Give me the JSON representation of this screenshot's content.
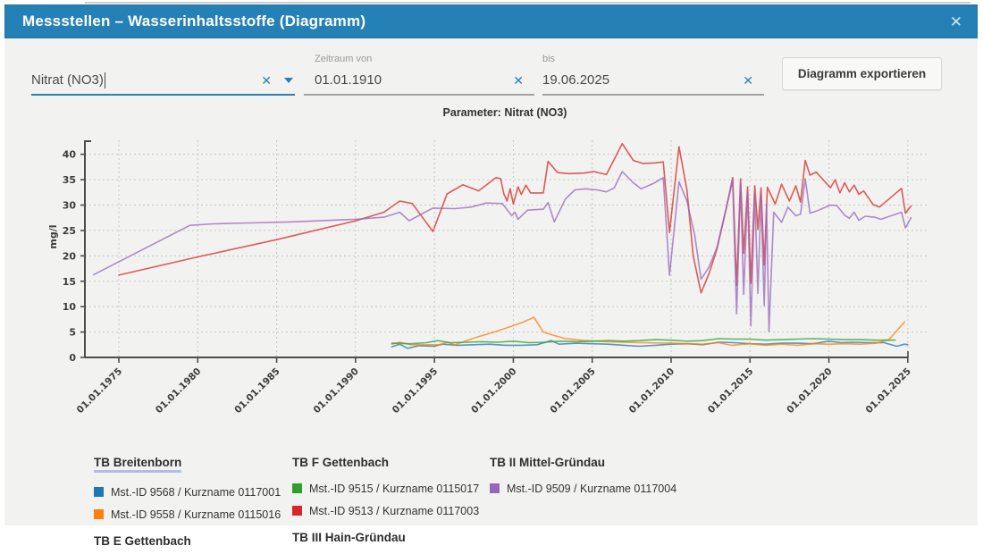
{
  "header": {
    "title": "Messstellen – Wasserinhaltsstoffe (Diagramm)",
    "close_label": "✕"
  },
  "filters": {
    "parameter": {
      "value": "Nitrat (NO3)",
      "clear_label": "✕"
    },
    "date_from": {
      "label": "Zeitraum von",
      "value": "01.01.1910",
      "clear_label": "✕"
    },
    "date_to": {
      "label": "bis",
      "value": "19.06.2025",
      "clear_label": "✕"
    },
    "export_button": "Diagramm exportieren"
  },
  "chart_data": {
    "type": "line",
    "title": "Parameter: Nitrat (NO3)",
    "xlabel": "",
    "ylabel": "mg/l",
    "ylim": [
      0,
      43
    ],
    "grid": "dashed",
    "yticks": [
      0,
      5,
      10,
      15,
      20,
      25,
      30,
      35,
      40
    ],
    "xticks": [
      "01.01.1975",
      "01.01.1980",
      "01.01.1985",
      "01.01.1990",
      "01.01.1995",
      "01.01.2000",
      "01.01.2005",
      "01.01.2010",
      "01.01.2015",
      "01.01.2020",
      "01.01.2025"
    ],
    "xtick_years": [
      1975,
      1980,
      1985,
      1990,
      1995,
      2000,
      2005,
      2010,
      2015,
      2020,
      2025
    ],
    "series": [
      {
        "name": "Mst.-ID 9568 / Kurzname 0117001",
        "color": "#1f77b4",
        "points": [
          [
            1992.3,
            2.1
          ],
          [
            1992.8,
            2.6
          ],
          [
            1993.3,
            1.8
          ],
          [
            1994,
            2.3
          ],
          [
            1995,
            2.2
          ],
          [
            1995.5,
            2.6
          ],
          [
            1996.5,
            2.4
          ],
          [
            1997.5,
            2.5
          ],
          [
            1998.5,
            2.6
          ],
          [
            1999.5,
            2.4
          ],
          [
            2000.5,
            2.4
          ],
          [
            2001.5,
            2.5
          ],
          [
            2002.4,
            3.3
          ],
          [
            2002.9,
            2.6
          ],
          [
            2004,
            2.8
          ],
          [
            2005,
            2.7
          ],
          [
            2006,
            2.6
          ],
          [
            2007,
            2.4
          ],
          [
            2008,
            2.2
          ],
          [
            2009,
            2.4
          ],
          [
            2010,
            2.6
          ],
          [
            2011,
            2.7
          ],
          [
            2012,
            2.5
          ],
          [
            2013,
            3.0
          ],
          [
            2014,
            2.9
          ],
          [
            2015,
            2.7
          ],
          [
            2016,
            2.6
          ],
          [
            2017,
            2.8
          ],
          [
            2018,
            2.8
          ],
          [
            2019,
            2.7
          ],
          [
            2020,
            3.2
          ],
          [
            2020.8,
            2.9
          ],
          [
            2021.5,
            3.0
          ],
          [
            2022.5,
            2.9
          ],
          [
            2023.5,
            2.9
          ],
          [
            2024.3,
            2.2
          ],
          [
            2024.8,
            2.6
          ],
          [
            2025,
            2.5
          ]
        ]
      },
      {
        "name": "Mst.-ID 9558 / Kurzname 0115016",
        "color": "#ff7f0e",
        "points": [
          [
            1992.3,
            2.6
          ],
          [
            1992.8,
            3.0
          ],
          [
            1993.5,
            2.5
          ],
          [
            1994.5,
            2.5
          ],
          [
            1995.3,
            2.5
          ],
          [
            1995.8,
            3.0
          ],
          [
            1996.3,
            2.5
          ],
          [
            1997.5,
            3.8
          ],
          [
            1999,
            5.2
          ],
          [
            2000.5,
            6.8
          ],
          [
            2001.3,
            7.9
          ],
          [
            2001.9,
            5.0
          ],
          [
            2002.5,
            4.4
          ],
          [
            2003.3,
            3.7
          ],
          [
            2004.5,
            3.3
          ],
          [
            2006,
            3.1
          ],
          [
            2008,
            2.9
          ],
          [
            2010,
            2.8
          ],
          [
            2012,
            2.6
          ],
          [
            2013,
            2.9
          ],
          [
            2013.8,
            2.4
          ],
          [
            2015,
            2.7
          ],
          [
            2016,
            2.4
          ],
          [
            2017,
            2.6
          ],
          [
            2018,
            2.4
          ],
          [
            2019,
            2.7
          ],
          [
            2020,
            2.6
          ],
          [
            2021,
            2.7
          ],
          [
            2022,
            2.6
          ],
          [
            2023,
            2.8
          ],
          [
            2023.8,
            3.5
          ],
          [
            2024.8,
            7.0
          ]
        ]
      },
      {
        "name": "Mst.-ID 9515 / Kurzname 0115017",
        "color": "#2ca02c",
        "points": [
          [
            1992.3,
            2.8
          ],
          [
            1993.5,
            2.7
          ],
          [
            1994.5,
            2.9
          ],
          [
            1995.2,
            3.3
          ],
          [
            1996,
            2.9
          ],
          [
            1997,
            3.0
          ],
          [
            1998,
            3.1
          ],
          [
            1999,
            3.0
          ],
          [
            2000,
            3.2
          ],
          [
            2001,
            2.9
          ],
          [
            2002,
            3.0
          ],
          [
            2003,
            3.2
          ],
          [
            2004,
            3.1
          ],
          [
            2005,
            3.2
          ],
          [
            2006,
            3.3
          ],
          [
            2007,
            3.2
          ],
          [
            2008,
            3.3
          ],
          [
            2009,
            3.5
          ],
          [
            2010,
            3.4
          ],
          [
            2011,
            3.2
          ],
          [
            2012,
            3.3
          ],
          [
            2013,
            3.7
          ],
          [
            2014,
            3.6
          ],
          [
            2015,
            3.6
          ],
          [
            2016,
            3.4
          ],
          [
            2017,
            3.5
          ],
          [
            2018,
            3.6
          ],
          [
            2019,
            3.7
          ],
          [
            2020,
            3.6
          ],
          [
            2021,
            3.5
          ],
          [
            2022,
            3.5
          ],
          [
            2023,
            3.4
          ],
          [
            2024.2,
            3.4
          ]
        ]
      },
      {
        "name": "Mst.-ID 9513 / Kurzname 0117003",
        "color": "#d62728",
        "points": [
          [
            1975,
            16.2
          ],
          [
            1980,
            19.8
          ],
          [
            1985,
            23.2
          ],
          [
            1990,
            26.9
          ],
          [
            1991.8,
            28.6
          ],
          [
            1992.8,
            30.8
          ],
          [
            1993.6,
            30.3
          ],
          [
            1994.9,
            24.8
          ],
          [
            1995.8,
            32.2
          ],
          [
            1996.8,
            34.0
          ],
          [
            1997.8,
            32.8
          ],
          [
            1998.9,
            35.4
          ],
          [
            1999.2,
            35.2
          ],
          [
            1999.4,
            32.2
          ],
          [
            1999.6,
            30.8
          ],
          [
            1999.8,
            33.2
          ],
          [
            2000.0,
            30.2
          ],
          [
            2000.3,
            33.6
          ],
          [
            2000.5,
            32.1
          ],
          [
            2000.8,
            33.9
          ],
          [
            2001.1,
            32.4
          ],
          [
            2001.9,
            32.4
          ],
          [
            2002.2,
            38.6
          ],
          [
            2002.8,
            36.4
          ],
          [
            2003.5,
            36.2
          ],
          [
            2004.5,
            36.3
          ],
          [
            2005.1,
            36.6
          ],
          [
            2005.9,
            36.0
          ],
          [
            2006.9,
            42.1
          ],
          [
            2007.6,
            38.8
          ],
          [
            2008.2,
            38.2
          ],
          [
            2009.0,
            38.3
          ],
          [
            2009.5,
            38.5
          ],
          [
            2009.9,
            24.6
          ],
          [
            2010.5,
            41.5
          ],
          [
            2011.0,
            33.0
          ],
          [
            2011.4,
            20.0
          ],
          [
            2011.9,
            12.7
          ],
          [
            2012.4,
            16.5
          ],
          [
            2012.9,
            21.3
          ],
          [
            2013.4,
            28.0
          ],
          [
            2013.9,
            35.4
          ],
          [
            2014.15,
            14.2
          ],
          [
            2014.4,
            35.2
          ],
          [
            2014.6,
            20.5
          ],
          [
            2014.85,
            33.6
          ],
          [
            2015.05,
            14.6
          ],
          [
            2015.3,
            33.8
          ],
          [
            2015.5,
            25.2
          ],
          [
            2015.7,
            33.4
          ],
          [
            2015.9,
            18.2
          ],
          [
            2016.1,
            33.5
          ],
          [
            2016.6,
            30.2
          ],
          [
            2017.0,
            34.1
          ],
          [
            2017.5,
            30.8
          ],
          [
            2017.9,
            33.8
          ],
          [
            2018.2,
            30.6
          ],
          [
            2018.5,
            38.8
          ],
          [
            2018.8,
            35.9
          ],
          [
            2019.2,
            36.5
          ],
          [
            2020.1,
            33.4
          ],
          [
            2020.4,
            35.0
          ],
          [
            2020.7,
            32.4
          ],
          [
            2021.0,
            34.4
          ],
          [
            2021.3,
            32.6
          ],
          [
            2021.6,
            33.9
          ],
          [
            2021.9,
            32.1
          ],
          [
            2022.2,
            32.8
          ],
          [
            2022.8,
            30.1
          ],
          [
            2023.2,
            29.6
          ],
          [
            2024.6,
            33.3
          ],
          [
            2024.85,
            28.4
          ],
          [
            2025.2,
            29.8
          ]
        ]
      },
      {
        "name": "Mst.-ID 9509 / Kurzname 0117004",
        "color": "#9467bd",
        "points": [
          [
            1973.4,
            16.3
          ],
          [
            1979.5,
            26.0
          ],
          [
            1981,
            26.3
          ],
          [
            1986,
            26.7
          ],
          [
            1990,
            27.2
          ],
          [
            1991.8,
            27.6
          ],
          [
            1992.8,
            28.6
          ],
          [
            1993.4,
            26.9
          ],
          [
            1994.4,
            28.6
          ],
          [
            1994.9,
            29.4
          ],
          [
            1996.3,
            29.3
          ],
          [
            1997.3,
            29.6
          ],
          [
            1998.3,
            30.4
          ],
          [
            1999.3,
            30.3
          ],
          [
            1999.9,
            27.9
          ],
          [
            2000.1,
            28.6
          ],
          [
            2000.3,
            27.2
          ],
          [
            2000.9,
            29.0
          ],
          [
            2001.9,
            29.2
          ],
          [
            2002.2,
            30.5
          ],
          [
            2002.6,
            26.7
          ],
          [
            2003.3,
            31.2
          ],
          [
            2003.9,
            33.0
          ],
          [
            2004.6,
            33.2
          ],
          [
            2005.3,
            33.0
          ],
          [
            2005.9,
            32.6
          ],
          [
            2006.4,
            33.4
          ],
          [
            2006.9,
            36.6
          ],
          [
            2007.6,
            34.4
          ],
          [
            2008.1,
            33.2
          ],
          [
            2008.9,
            34.3
          ],
          [
            2009.5,
            35.4
          ],
          [
            2009.9,
            16.2
          ],
          [
            2010.5,
            34.6
          ],
          [
            2011.0,
            30.8
          ],
          [
            2011.5,
            24.0
          ],
          [
            2011.9,
            15.4
          ],
          [
            2012.4,
            17.8
          ],
          [
            2012.9,
            21.6
          ],
          [
            2013.9,
            34.8
          ],
          [
            2014.15,
            8.6
          ],
          [
            2014.4,
            34.2
          ],
          [
            2014.6,
            12.4
          ],
          [
            2014.85,
            32.6
          ],
          [
            2015.05,
            6.2
          ],
          [
            2015.3,
            32.2
          ],
          [
            2015.5,
            12.6
          ],
          [
            2015.7,
            31.6
          ],
          [
            2015.9,
            10.2
          ],
          [
            2016.05,
            30.2
          ],
          [
            2016.2,
            5.1
          ],
          [
            2016.5,
            28.6
          ],
          [
            2017.0,
            26.6
          ],
          [
            2017.4,
            29.6
          ],
          [
            2017.9,
            27.9
          ],
          [
            2018.2,
            28.2
          ],
          [
            2018.5,
            35.2
          ],
          [
            2018.8,
            28.4
          ],
          [
            2019.2,
            28.8
          ],
          [
            2020.1,
            30.0
          ],
          [
            2020.5,
            29.9
          ],
          [
            2021.0,
            28.0
          ],
          [
            2021.3,
            27.4
          ],
          [
            2021.6,
            28.6
          ],
          [
            2021.9,
            27.0
          ],
          [
            2022.3,
            27.8
          ],
          [
            2022.9,
            27.6
          ],
          [
            2023.3,
            27.2
          ],
          [
            2024.6,
            28.6
          ],
          [
            2024.85,
            25.5
          ],
          [
            2025.2,
            27.5
          ]
        ]
      }
    ]
  },
  "legend": {
    "columns": [
      {
        "header": "TB Breitenborn",
        "header_underlined": true,
        "underline_color": "#b3bce8",
        "items": [
          {
            "color": "#1f77b4",
            "label": "Mst.-ID 9568 / Kurzname 0117001"
          },
          {
            "color": "#ff7f0e",
            "label": "Mst.-ID 9558 / Kurzname 0115016"
          }
        ],
        "footer": "TB E Gettenbach"
      },
      {
        "header": "TB F Gettenbach",
        "header_underlined": false,
        "items": [
          {
            "color": "#2ca02c",
            "label": "Mst.-ID 9515 / Kurzname 0115017"
          },
          {
            "color": "#d62728",
            "label": "Mst.-ID 9513 / Kurzname 0117003"
          }
        ],
        "footer": "TB III Hain-Gründau"
      },
      {
        "header": "TB II Mittel-Gründau",
        "header_underlined": false,
        "items": [
          {
            "color": "#9467bd",
            "label": "Mst.-ID 9509 / Kurzname 0117004"
          }
        ],
        "footer": ""
      }
    ]
  },
  "colors": {
    "accent_blue": "#2581b5",
    "panel_gray": "#f2f2f0"
  }
}
